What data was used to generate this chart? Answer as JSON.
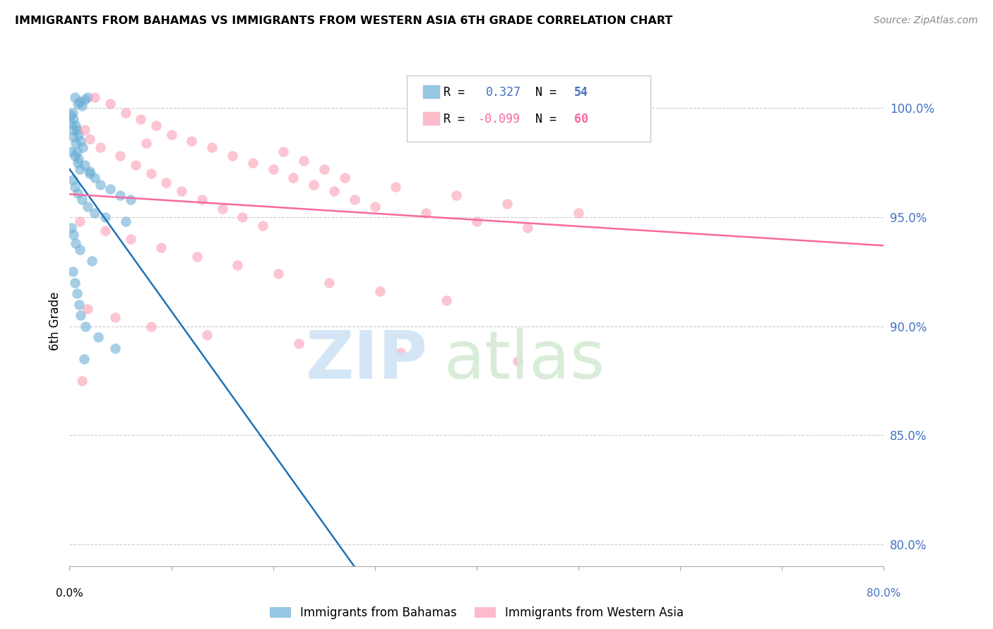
{
  "title": "IMMIGRANTS FROM BAHAMAS VS IMMIGRANTS FROM WESTERN ASIA 6TH GRADE CORRELATION CHART",
  "source": "Source: ZipAtlas.com",
  "ylabel": "6th Grade",
  "y_ticks": [
    80.0,
    85.0,
    90.0,
    95.0,
    100.0
  ],
  "y_tick_labels": [
    "80.0%",
    "85.0%",
    "90.0%",
    "95.0%",
    "100.0%"
  ],
  "xlim": [
    0.0,
    80.0
  ],
  "ylim": [
    79.0,
    101.5
  ],
  "legend_blue_r": "0.327",
  "legend_blue_n": "54",
  "legend_pink_r": "-0.099",
  "legend_pink_n": "60",
  "blue_color": "#6baed6",
  "pink_color": "#fa9fb5",
  "blue_line_color": "#2171b5",
  "pink_line_color": "#f768a1",
  "background_color": "#ffffff",
  "blue_scatter_x": [
    0.5,
    0.8,
    1.0,
    1.2,
    1.5,
    1.8,
    0.3,
    0.4,
    0.6,
    0.7,
    0.9,
    1.1,
    1.3,
    0.2,
    0.5,
    0.8,
    1.0,
    2.0,
    2.5,
    3.0,
    4.0,
    5.0,
    6.0,
    0.1,
    0.2,
    0.3,
    0.4,
    0.6,
    0.7,
    0.9,
    1.5,
    2.0,
    0.3,
    0.5,
    0.8,
    1.2,
    1.8,
    2.5,
    3.5,
    5.5,
    0.2,
    0.4,
    0.6,
    1.0,
    2.2,
    0.35,
    0.55,
    0.75,
    0.95,
    1.1,
    1.6,
    2.8,
    4.5,
    1.4
  ],
  "blue_scatter_y": [
    100.5,
    100.2,
    100.3,
    100.1,
    100.4,
    100.5,
    99.8,
    99.5,
    99.2,
    99.0,
    98.8,
    98.5,
    98.2,
    98.0,
    97.8,
    97.5,
    97.2,
    97.0,
    96.8,
    96.5,
    96.3,
    96.0,
    95.8,
    99.7,
    99.3,
    99.0,
    98.7,
    98.4,
    98.0,
    97.7,
    97.4,
    97.1,
    96.7,
    96.4,
    96.1,
    95.8,
    95.5,
    95.2,
    95.0,
    94.8,
    94.5,
    94.2,
    93.8,
    93.5,
    93.0,
    92.5,
    92.0,
    91.5,
    91.0,
    90.5,
    90.0,
    89.5,
    89.0,
    88.5
  ],
  "pink_scatter_x": [
    2.5,
    4.0,
    5.5,
    7.0,
    8.5,
    10.0,
    12.0,
    14.0,
    16.0,
    18.0,
    20.0,
    22.0,
    24.0,
    26.0,
    28.0,
    30.0,
    35.0,
    40.0,
    45.0,
    55.0,
    1.5,
    2.0,
    3.0,
    5.0,
    6.5,
    8.0,
    9.5,
    11.0,
    13.0,
    15.0,
    17.0,
    19.0,
    21.0,
    23.0,
    25.0,
    27.0,
    32.0,
    38.0,
    43.0,
    50.0,
    1.0,
    3.5,
    6.0,
    9.0,
    12.5,
    16.5,
    20.5,
    25.5,
    30.5,
    37.0,
    1.8,
    4.5,
    8.0,
    13.5,
    22.5,
    32.5,
    44.0,
    1.2,
    7.5,
    35.0
  ],
  "pink_scatter_y": [
    100.5,
    100.2,
    99.8,
    99.5,
    99.2,
    98.8,
    98.5,
    98.2,
    97.8,
    97.5,
    97.2,
    96.8,
    96.5,
    96.2,
    95.8,
    95.5,
    95.2,
    94.8,
    94.5,
    100.8,
    99.0,
    98.6,
    98.2,
    97.8,
    97.4,
    97.0,
    96.6,
    96.2,
    95.8,
    95.4,
    95.0,
    94.6,
    98.0,
    97.6,
    97.2,
    96.8,
    96.4,
    96.0,
    95.6,
    95.2,
    94.8,
    94.4,
    94.0,
    93.6,
    93.2,
    92.8,
    92.4,
    92.0,
    91.6,
    91.2,
    90.8,
    90.4,
    90.0,
    89.6,
    89.2,
    88.8,
    88.4,
    87.5,
    98.4,
    99.5
  ]
}
